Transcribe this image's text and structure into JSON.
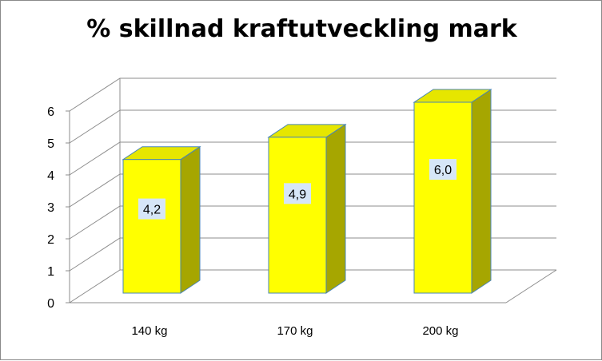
{
  "chart_data": {
    "type": "bar",
    "title": "% skillnad kraftutveckling mark",
    "categories": [
      "140 kg",
      "170 kg",
      "200 kg"
    ],
    "values": [
      4.2,
      4.9,
      6.0
    ],
    "data_labels": [
      "4,2",
      "4,9",
      "6,0"
    ],
    "yticks": [
      "0",
      "1",
      "2",
      "3",
      "4",
      "5",
      "6"
    ],
    "ylim": [
      0,
      6
    ],
    "grid": true,
    "legend": "none",
    "three_d": true,
    "colors": {
      "bar_front": "#ffff00",
      "bar_top": "#e6e600",
      "bar_side": "#a6a600",
      "bar_edge": "#4a86b5",
      "label_bg": "#d6e6f8",
      "grid": "#8c8c8c"
    }
  }
}
